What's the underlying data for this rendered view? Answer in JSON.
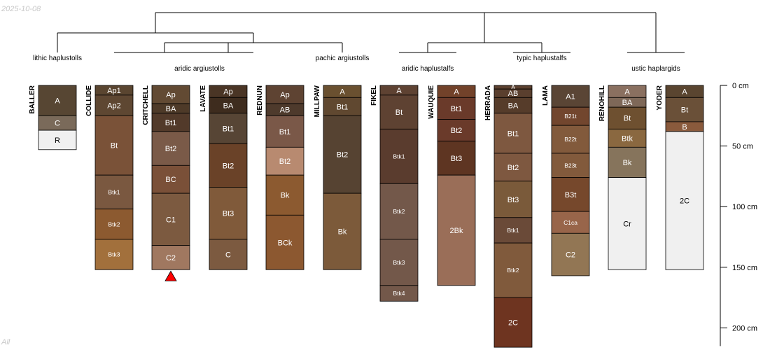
{
  "date_stamp": "2025-10-08",
  "footer_note": "All",
  "chart_data": {
    "type": "soil-profile-sketch",
    "title": "",
    "depth_unit": "cm",
    "depth_axis": {
      "range": [
        0,
        215
      ],
      "ticks": [
        0,
        50,
        100,
        150,
        200
      ]
    },
    "groups": [
      {
        "label": "lithic haplustolls"
      },
      {
        "label": "aridic argiustolls"
      },
      {
        "label": "pachic argiustolls"
      },
      {
        "label": "aridic haplustalfs"
      },
      {
        "label": "typic haplustalfs"
      },
      {
        "label": "ustic haplargids"
      }
    ],
    "profiles": [
      {
        "name": "BALLER",
        "horizons": [
          {
            "name": "A",
            "top": 0,
            "bottom": 25,
            "color": "#574633"
          },
          {
            "name": "C",
            "top": 25,
            "bottom": 37,
            "color": "#7a6a5a"
          },
          {
            "name": "R",
            "top": 37,
            "bottom": 53,
            "color": "#f0f0f0"
          }
        ]
      },
      {
        "name": "COLLIDE",
        "horizons": [
          {
            "name": "Ap1",
            "top": 0,
            "bottom": 8,
            "color": "#5a4530"
          },
          {
            "name": "Ap2",
            "top": 8,
            "bottom": 25,
            "color": "#5e4732"
          },
          {
            "name": "Bt",
            "top": 25,
            "bottom": 74,
            "color": "#7a5238"
          },
          {
            "name": "Btk1",
            "top": 74,
            "bottom": 102,
            "color": "#7a5840"
          },
          {
            "name": "Btk2",
            "top": 102,
            "bottom": 127,
            "color": "#8c5a30"
          },
          {
            "name": "Btk3",
            "top": 127,
            "bottom": 152,
            "color": "#a2703c"
          }
        ]
      },
      {
        "name": "CRITCHELL",
        "horizons": [
          {
            "name": "Ap",
            "top": 0,
            "bottom": 15,
            "color": "#624a33"
          },
          {
            "name": "BA",
            "top": 15,
            "bottom": 23,
            "color": "#4e3a28"
          },
          {
            "name": "Bt1",
            "top": 23,
            "bottom": 38,
            "color": "#523a2a"
          },
          {
            "name": "Bt2",
            "top": 38,
            "bottom": 66,
            "color": "#7a5a48"
          },
          {
            "name": "BC",
            "top": 66,
            "bottom": 89,
            "color": "#7a5038"
          },
          {
            "name": "C1",
            "top": 89,
            "bottom": 132,
            "color": "#7c5a40"
          },
          {
            "name": "C2",
            "top": 132,
            "bottom": 152,
            "color": "#a07860"
          }
        ],
        "marker": "bottom-triangle"
      },
      {
        "name": "LAVATE",
        "horizons": [
          {
            "name": "Ap",
            "top": 0,
            "bottom": 10,
            "color": "#4a3525"
          },
          {
            "name": "BA",
            "top": 10,
            "bottom": 23,
            "color": "#3e2c1e"
          },
          {
            "name": "Bt1",
            "top": 23,
            "bottom": 48,
            "color": "#574535"
          },
          {
            "name": "Bt2",
            "top": 48,
            "bottom": 84,
            "color": "#6a4228"
          },
          {
            "name": "Bt3",
            "top": 84,
            "bottom": 127,
            "color": "#805a3a"
          },
          {
            "name": "C",
            "top": 127,
            "bottom": 152,
            "color": "#7c5a40"
          }
        ]
      },
      {
        "name": "REDNUN",
        "horizons": [
          {
            "name": "Ap",
            "top": 0,
            "bottom": 15,
            "color": "#5e4332"
          },
          {
            "name": "AB",
            "top": 15,
            "bottom": 25,
            "color": "#4e3a2c"
          },
          {
            "name": "Bt1",
            "top": 25,
            "bottom": 51,
            "color": "#7a5848"
          },
          {
            "name": "Bt2",
            "top": 51,
            "bottom": 74,
            "color": "#b88a70"
          },
          {
            "name": "Bk",
            "top": 74,
            "bottom": 107,
            "color": "#8c5a30"
          },
          {
            "name": "BCk",
            "top": 107,
            "bottom": 152,
            "color": "#8c5830"
          }
        ]
      },
      {
        "name": "MILLPAW",
        "horizons": [
          {
            "name": "A",
            "top": 0,
            "bottom": 10,
            "color": "#6a5030"
          },
          {
            "name": "Bt1",
            "top": 10,
            "bottom": 25,
            "color": "#604830"
          },
          {
            "name": "Bt2",
            "top": 25,
            "bottom": 89,
            "color": "#564332"
          },
          {
            "name": "Bk",
            "top": 89,
            "bottom": 152,
            "color": "#7c5a3a"
          }
        ]
      },
      {
        "name": "FIKEL",
        "horizons": [
          {
            "name": "A",
            "top": 0,
            "bottom": 8,
            "color": "#5e4232"
          },
          {
            "name": "Bt",
            "top": 8,
            "bottom": 36,
            "color": "#5e4232"
          },
          {
            "name": "Btk1",
            "top": 36,
            "bottom": 81,
            "color": "#5a3c2e"
          },
          {
            "name": "Btk2",
            "top": 81,
            "bottom": 127,
            "color": "#73584a"
          },
          {
            "name": "Btk3",
            "top": 127,
            "bottom": 165,
            "color": "#73584a"
          },
          {
            "name": "Btk4",
            "top": 165,
            "bottom": 178,
            "color": "#73584a"
          }
        ]
      },
      {
        "name": "WAUQUIE",
        "horizons": [
          {
            "name": "A",
            "top": 0,
            "bottom": 10,
            "color": "#72422a"
          },
          {
            "name": "Bt1",
            "top": 10,
            "bottom": 28,
            "color": "#6a3a2a"
          },
          {
            "name": "Bt2",
            "top": 28,
            "bottom": 46,
            "color": "#6a3a2a"
          },
          {
            "name": "Bt3",
            "top": 46,
            "bottom": 74,
            "color": "#5e3522"
          },
          {
            "name": "2Bk",
            "top": 74,
            "bottom": 165,
            "color": "#9a6e58"
          }
        ]
      },
      {
        "name": "HERRADA",
        "horizons": [
          {
            "name": "A",
            "top": 0,
            "bottom": 3,
            "color": "#5a3f2e"
          },
          {
            "name": "AB",
            "top": 3,
            "bottom": 10,
            "color": "#5a3f2e"
          },
          {
            "name": "BA",
            "top": 10,
            "bottom": 23,
            "color": "#563c2a"
          },
          {
            "name": "Bt1",
            "top": 23,
            "bottom": 56,
            "color": "#7e5840"
          },
          {
            "name": "Bt2",
            "top": 56,
            "bottom": 79,
            "color": "#7e5840"
          },
          {
            "name": "Bt3",
            "top": 79,
            "bottom": 109,
            "color": "#7a5a3a"
          },
          {
            "name": "Btk1",
            "top": 109,
            "bottom": 130,
            "color": "#6a4a38"
          },
          {
            "name": "Btk2",
            "top": 130,
            "bottom": 175,
            "color": "#805a3c"
          },
          {
            "name": "2C",
            "top": 175,
            "bottom": 216,
            "color": "#6e3420"
          }
        ]
      },
      {
        "name": "LAMA",
        "horizons": [
          {
            "name": "A1",
            "top": 0,
            "bottom": 18,
            "color": "#5a4535"
          },
          {
            "name": "B21t",
            "top": 18,
            "bottom": 33,
            "color": "#72462e"
          },
          {
            "name": "B22t",
            "top": 33,
            "bottom": 56,
            "color": "#825a3c"
          },
          {
            "name": "B23t",
            "top": 56,
            "bottom": 76,
            "color": "#825a3c"
          },
          {
            "name": "B3t",
            "top": 76,
            "bottom": 104,
            "color": "#76482c"
          },
          {
            "name": "C1ca",
            "top": 104,
            "bottom": 122,
            "color": "#98654a"
          },
          {
            "name": "C2",
            "top": 122,
            "bottom": 157,
            "color": "#927654"
          }
        ]
      },
      {
        "name": "RENOHILL",
        "horizons": [
          {
            "name": "A",
            "top": 0,
            "bottom": 10,
            "color": "#8a7060"
          },
          {
            "name": "BA",
            "top": 10,
            "bottom": 18,
            "color": "#7e6858"
          },
          {
            "name": "Bt",
            "top": 18,
            "bottom": 36,
            "color": "#6e5030"
          },
          {
            "name": "Btk",
            "top": 36,
            "bottom": 51,
            "color": "#8a6840"
          },
          {
            "name": "Bk",
            "top": 51,
            "bottom": 76,
            "color": "#86745c"
          },
          {
            "name": "Cr",
            "top": 76,
            "bottom": 152,
            "color": "#f0f0f0"
          }
        ]
      },
      {
        "name": "YODER",
        "horizons": [
          {
            "name": "A",
            "top": 0,
            "bottom": 10,
            "color": "#5a4530"
          },
          {
            "name": "Bt",
            "top": 10,
            "bottom": 30,
            "color": "#6a5038"
          },
          {
            "name": "B",
            "top": 30,
            "bottom": 38,
            "color": "#8a5a3c"
          },
          {
            "name": "2C",
            "top": 38,
            "bottom": 152,
            "color": "#f0f0f0"
          }
        ]
      }
    ]
  }
}
